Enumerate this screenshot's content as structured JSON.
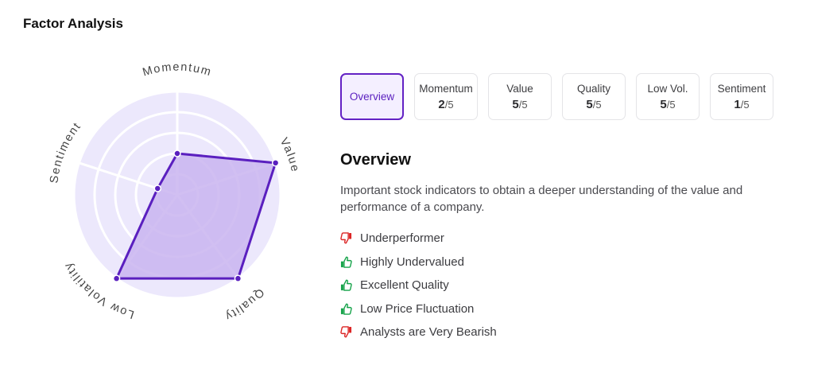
{
  "section_title": "Factor Analysis",
  "radar": {
    "axes": [
      "Momentum",
      "Value",
      "Quality",
      "Low Volatility",
      "Sentiment"
    ],
    "scores": [
      2,
      5,
      5,
      5,
      1
    ],
    "max": 5,
    "fill_color": "#c9b4f0",
    "stroke_color": "#5a1fbf",
    "background_color": "#ece8fc"
  },
  "tabs": [
    {
      "label": "Overview",
      "score": null,
      "active": true
    },
    {
      "label": "Momentum",
      "score": "2",
      "max": "/5",
      "active": false
    },
    {
      "label": "Value",
      "score": "5",
      "max": "/5",
      "active": false
    },
    {
      "label": "Quality",
      "score": "5",
      "max": "/5",
      "active": false
    },
    {
      "label": "Low Vol.",
      "score": "5",
      "max": "/5",
      "active": false
    },
    {
      "label": "Sentiment",
      "score": "1",
      "max": "/5",
      "active": false
    }
  ],
  "overview": {
    "title": "Overview",
    "description": "Important stock indicators to obtain a deeper understanding of the value and performance of a company.",
    "indicators": [
      {
        "text": "Underperformer",
        "sentiment": "negative",
        "icon": "thumbs-down-icon"
      },
      {
        "text": "Highly Undervalued",
        "sentiment": "positive",
        "icon": "thumbs-up-icon"
      },
      {
        "text": "Excellent Quality",
        "sentiment": "positive",
        "icon": "thumbs-up-icon"
      },
      {
        "text": "Low Price Fluctuation",
        "sentiment": "positive",
        "icon": "thumbs-up-icon"
      },
      {
        "text": "Analysts are Very Bearish",
        "sentiment": "negative",
        "icon": "thumbs-down-icon"
      }
    ]
  },
  "colors": {
    "accent": "#5a1fbf",
    "positive": "#16a34a",
    "negative": "#dc2626"
  }
}
